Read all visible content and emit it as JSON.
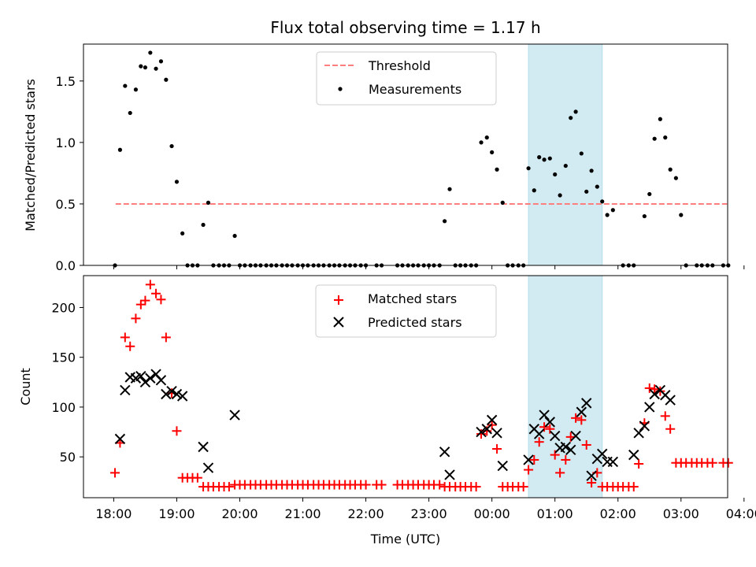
{
  "chart_data": {
    "title": "Flux total observing time = 1.17 h",
    "xlabel": "Time (UTC)",
    "x_ticks": [
      "18:00",
      "19:00",
      "20:00",
      "21:00",
      "22:00",
      "23:00",
      "00:00",
      "01:00",
      "02:00",
      "03:00",
      "04:00"
    ],
    "xlim_hours_since_18": [
      -0.48,
      9.74
    ],
    "shaded_span_hours_since_18": [
      6.58,
      7.75
    ],
    "shaded_color": "#add8e6",
    "panels": [
      {
        "type": "scatter",
        "ylabel": "Matched/Predicted stars",
        "ylim": [
          0,
          1.8
        ],
        "y_ticks": [
          0.0,
          0.5,
          1.0,
          1.5
        ],
        "legend": {
          "placement": "top-center",
          "entries": [
            "Threshold",
            "Measurements"
          ]
        },
        "series": [
          {
            "name": "Threshold",
            "style": "dashed-line",
            "color": "#ff7f7f",
            "x": [
              0.03,
              9.73
            ],
            "y": [
              0.5,
              0.5
            ]
          },
          {
            "name": "Measurements",
            "style": "dot",
            "color": "#000000",
            "x": [
              0.02,
              0.1,
              0.18,
              0.26,
              0.35,
              0.43,
              0.5,
              0.58,
              0.67,
              0.75,
              0.83,
              0.92,
              1.0,
              1.09,
              1.17,
              1.25,
              1.33,
              1.42,
              1.5,
              1.58,
              1.67,
              1.75,
              1.83,
              1.92,
              2.0,
              2.08,
              2.17,
              2.25,
              2.33,
              2.42,
              2.5,
              2.58,
              2.67,
              2.75,
              2.83,
              2.92,
              3.0,
              3.08,
              3.17,
              3.25,
              3.33,
              3.42,
              3.5,
              3.58,
              3.67,
              3.75,
              3.83,
              3.92,
              4.0,
              4.17,
              4.25,
              4.5,
              4.58,
              4.67,
              4.75,
              4.83,
              4.92,
              5.0,
              5.08,
              5.17,
              5.25,
              5.33,
              5.42,
              5.5,
              5.58,
              5.67,
              5.75,
              5.83,
              5.92,
              6.0,
              6.08,
              6.17,
              6.25,
              6.33,
              6.42,
              6.5,
              6.58,
              6.67,
              6.75,
              6.83,
              6.92,
              7.0,
              7.08,
              7.17,
              7.25,
              7.33,
              7.42,
              7.5,
              7.58,
              7.67,
              7.75,
              7.83,
              7.92,
              8.08,
              8.17,
              8.25,
              8.42,
              8.5,
              8.58,
              8.67,
              8.75,
              8.83,
              8.92,
              9.0,
              9.08,
              9.25,
              9.33,
              9.42,
              9.5,
              9.67,
              9.75
            ],
            "y": [
              0.0,
              0.94,
              1.46,
              1.24,
              1.43,
              1.62,
              1.61,
              1.73,
              1.6,
              1.66,
              1.51,
              0.97,
              0.68,
              0.26,
              0.0,
              0.0,
              0.0,
              0.33,
              0.51,
              0.0,
              0.0,
              0.0,
              0.0,
              0.24,
              0.0,
              0.0,
              0.0,
              0.0,
              0.0,
              0.0,
              0.0,
              0.0,
              0.0,
              0.0,
              0.0,
              0.0,
              0.0,
              0.0,
              0.0,
              0.0,
              0.0,
              0.0,
              0.0,
              0.0,
              0.0,
              0.0,
              0.0,
              0.0,
              0.0,
              0.0,
              0.0,
              0.0,
              0.0,
              0.0,
              0.0,
              0.0,
              0.0,
              0.0,
              0.0,
              0.0,
              0.36,
              0.62,
              0.0,
              0.0,
              0.0,
              0.0,
              0.0,
              1.0,
              1.04,
              0.92,
              0.78,
              0.51,
              0.0,
              0.0,
              0.0,
              0.0,
              0.79,
              0.61,
              0.88,
              0.86,
              0.87,
              0.74,
              0.57,
              0.81,
              1.2,
              1.25,
              0.91,
              0.6,
              0.77,
              0.64,
              0.52,
              0.41,
              0.45,
              0.0,
              0.0,
              0.0,
              0.4,
              0.58,
              1.03,
              1.19,
              1.04,
              0.78,
              0.71,
              0.41,
              0.0,
              0.0,
              0.0,
              0.0,
              0.0,
              0.0,
              0.0
            ]
          }
        ]
      },
      {
        "type": "scatter",
        "ylabel": "Count",
        "ylim": [
          9,
          232
        ],
        "y_ticks": [
          50,
          100,
          150,
          200
        ],
        "legend": {
          "placement": "top-center",
          "entries": [
            "Matched stars",
            "Predicted stars"
          ]
        },
        "series": [
          {
            "name": "Matched stars",
            "marker": "plus",
            "color": "#ff0000",
            "x": [
              0.02,
              0.1,
              0.18,
              0.26,
              0.35,
              0.43,
              0.5,
              0.58,
              0.67,
              0.75,
              0.83,
              0.92,
              1.0,
              1.09,
              1.17,
              1.25,
              1.33,
              1.42,
              1.5,
              1.58,
              1.67,
              1.75,
              1.83,
              1.92,
              2.0,
              2.08,
              2.17,
              2.25,
              2.33,
              2.42,
              2.5,
              2.58,
              2.67,
              2.75,
              2.83,
              2.92,
              3.0,
              3.08,
              3.17,
              3.25,
              3.33,
              3.42,
              3.5,
              3.58,
              3.67,
              3.75,
              3.83,
              3.92,
              4.0,
              4.17,
              4.25,
              4.5,
              4.58,
              4.67,
              4.75,
              4.83,
              4.92,
              5.0,
              5.08,
              5.17,
              5.25,
              5.33,
              5.42,
              5.5,
              5.58,
              5.67,
              5.75,
              5.83,
              5.92,
              6.0,
              6.08,
              6.17,
              6.25,
              6.33,
              6.42,
              6.5,
              6.58,
              6.67,
              6.75,
              6.83,
              6.92,
              7.0,
              7.08,
              7.17,
              7.25,
              7.33,
              7.42,
              7.5,
              7.58,
              7.67,
              7.75,
              7.83,
              7.92,
              8.0,
              8.08,
              8.17,
              8.25,
              8.33,
              8.42,
              8.5,
              8.58,
              8.67,
              8.75,
              8.83,
              8.92,
              9.0,
              9.08,
              9.17,
              9.25,
              9.33,
              9.42,
              9.5,
              9.67,
              9.75
            ],
            "y": [
              34,
              64,
              170,
              161,
              189,
              203,
              207,
              223,
              214,
              208,
              170,
              114,
              76,
              29,
              29,
              29,
              29,
              20,
              20,
              20,
              20,
              20,
              20,
              22,
              22,
              22,
              22,
              22,
              22,
              22,
              22,
              22,
              22,
              22,
              22,
              22,
              22,
              22,
              22,
              22,
              22,
              22,
              22,
              22,
              22,
              22,
              22,
              22,
              22,
              22,
              22,
              22,
              22,
              22,
              22,
              22,
              22,
              22,
              22,
              22,
              20,
              20,
              20,
              20,
              20,
              20,
              20,
              73,
              76,
              82,
              58,
              20,
              20,
              20,
              20,
              20,
              37,
              47,
              65,
              80,
              78,
              52,
              34,
              47,
              70,
              89,
              87,
              62,
              24,
              34,
              20,
              20,
              20,
              20,
              20,
              20,
              20,
              43,
              84,
              119,
              118,
              116,
              91,
              78,
              44,
              44,
              44,
              44,
              44,
              44,
              44,
              44,
              44,
              44
            ]
          },
          {
            "name": "Predicted stars",
            "marker": "x",
            "color": "#000000",
            "x": [
              0.1,
              0.18,
              0.26,
              0.35,
              0.43,
              0.5,
              0.58,
              0.67,
              0.75,
              0.83,
              0.92,
              1.0,
              1.09,
              1.42,
              1.5,
              1.92,
              5.25,
              5.33,
              5.83,
              5.92,
              6.0,
              6.08,
              6.17,
              6.58,
              6.67,
              6.75,
              6.83,
              6.92,
              7.0,
              7.08,
              7.17,
              7.25,
              7.33,
              7.42,
              7.5,
              7.58,
              7.67,
              7.75,
              7.83,
              7.92,
              8.25,
              8.33,
              8.42,
              8.5,
              8.58,
              8.67,
              8.75,
              8.83
            ],
            "y": [
              68,
              117,
              130,
              129,
              131,
              125,
              129,
              133,
              127,
              113,
              116,
              113,
              111,
              60,
              39,
              92,
              55,
              32,
              75,
              78,
              87,
              74,
              41,
              47,
              78,
              73,
              92,
              85,
              71,
              59,
              60,
              57,
              71,
              95,
              104,
              31,
              48,
              53,
              45,
              45,
              52,
              74,
              81,
              100,
              113,
              117,
              112,
              107
            ]
          }
        ]
      }
    ]
  }
}
